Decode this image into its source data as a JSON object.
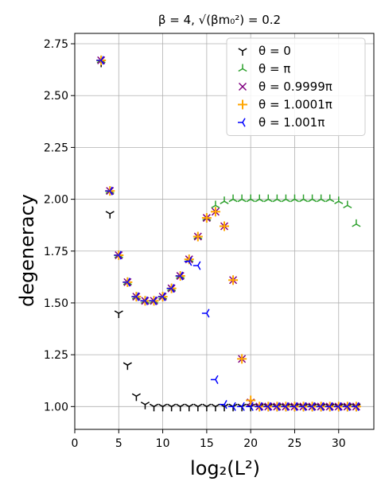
{
  "chart_data": {
    "type": "scatter",
    "title": "β = 4, √(βm₀²) = 0.2",
    "xlabel": "log₂(L²)",
    "ylabel": "degeneracy",
    "xlim": [
      0,
      34
    ],
    "ylim": [
      0.89,
      2.8
    ],
    "xticks": [
      0,
      5,
      10,
      15,
      20,
      25,
      30
    ],
    "yticks": [
      1.0,
      1.25,
      1.5,
      1.75,
      2.0,
      2.25,
      2.5,
      2.75
    ],
    "grid": true,
    "legend_position": "top-right",
    "series": [
      {
        "name": "θ = 0",
        "marker": "tri_down",
        "color": "#000000",
        "x": [
          3,
          4,
          5,
          6,
          7,
          8,
          9,
          10,
          11,
          12,
          13,
          14,
          15,
          16,
          17,
          18,
          19,
          20,
          21,
          22,
          23,
          24,
          25,
          26,
          27,
          28,
          29,
          30,
          31,
          32
        ],
        "y": [
          2.66,
          1.93,
          1.45,
          1.2,
          1.05,
          1.01,
          1.0,
          1.0,
          1.0,
          1.0,
          1.0,
          1.0,
          1.0,
          1.0,
          1.0,
          1.0,
          1.0,
          1.0,
          1.0,
          1.0,
          1.0,
          1.0,
          1.0,
          1.0,
          1.0,
          1.0,
          1.0,
          1.0,
          1.0,
          1.0
        ]
      },
      {
        "name": "θ = π",
        "marker": "tri_up",
        "color": "#2ca02c",
        "x": [
          3,
          4,
          5,
          6,
          7,
          8,
          9,
          10,
          11,
          12,
          13,
          14,
          15,
          16,
          17,
          18,
          19,
          20,
          21,
          22,
          23,
          24,
          25,
          26,
          27,
          28,
          29,
          30,
          31,
          32
        ],
        "y": [
          2.67,
          2.04,
          1.73,
          1.6,
          1.53,
          1.51,
          1.51,
          1.53,
          1.57,
          1.63,
          1.71,
          1.82,
          1.91,
          1.97,
          1.99,
          2.0,
          2.0,
          2.0,
          2.0,
          2.0,
          2.0,
          2.0,
          2.0,
          2.0,
          2.0,
          2.0,
          2.0,
          1.99,
          1.97,
          1.88
        ]
      },
      {
        "name": "θ = 0.9999π",
        "marker": "x",
        "color": "#800080",
        "x": [
          3,
          4,
          5,
          6,
          7,
          8,
          9,
          10,
          11,
          12,
          13,
          14,
          15,
          16,
          17,
          18,
          19,
          20,
          21,
          22,
          23,
          24,
          25,
          26,
          27,
          28,
          29,
          30,
          31,
          32
        ],
        "y": [
          2.67,
          2.04,
          1.73,
          1.6,
          1.53,
          1.51,
          1.51,
          1.53,
          1.57,
          1.63,
          1.71,
          1.82,
          1.91,
          1.94,
          1.87,
          1.61,
          1.23,
          1.02,
          1.0,
          1.0,
          1.0,
          1.0,
          1.0,
          1.0,
          1.0,
          1.0,
          1.0,
          1.0,
          1.0,
          1.0
        ]
      },
      {
        "name": "θ = 1.0001π",
        "marker": "plus",
        "color": "#ffa500",
        "x": [
          3,
          4,
          5,
          6,
          7,
          8,
          9,
          10,
          11,
          12,
          13,
          14,
          15,
          16,
          17,
          18,
          19,
          20,
          21,
          22,
          23,
          24,
          25,
          26,
          27,
          28,
          29,
          30,
          31,
          32
        ],
        "y": [
          2.67,
          2.04,
          1.73,
          1.6,
          1.53,
          1.51,
          1.51,
          1.53,
          1.57,
          1.63,
          1.71,
          1.82,
          1.91,
          1.94,
          1.87,
          1.61,
          1.23,
          1.03,
          1.0,
          1.0,
          1.0,
          1.0,
          1.0,
          1.0,
          1.0,
          1.0,
          1.0,
          1.0,
          1.0,
          1.0
        ]
      },
      {
        "name": "θ = 1.001π",
        "marker": "tri_left",
        "color": "#0000ff",
        "x": [
          3,
          4,
          5,
          6,
          7,
          8,
          9,
          10,
          11,
          12,
          13,
          14,
          15,
          16,
          17,
          18,
          19,
          20,
          21,
          22,
          23,
          24,
          25,
          26,
          27,
          28,
          29,
          30,
          31,
          32
        ],
        "y": [
          2.67,
          2.04,
          1.73,
          1.6,
          1.53,
          1.51,
          1.51,
          1.53,
          1.57,
          1.63,
          1.7,
          1.68,
          1.45,
          1.13,
          1.01,
          1.0,
          1.0,
          1.0,
          1.0,
          1.0,
          1.0,
          1.0,
          1.0,
          1.0,
          1.0,
          1.0,
          1.0,
          1.0,
          1.0,
          1.0
        ]
      }
    ]
  }
}
